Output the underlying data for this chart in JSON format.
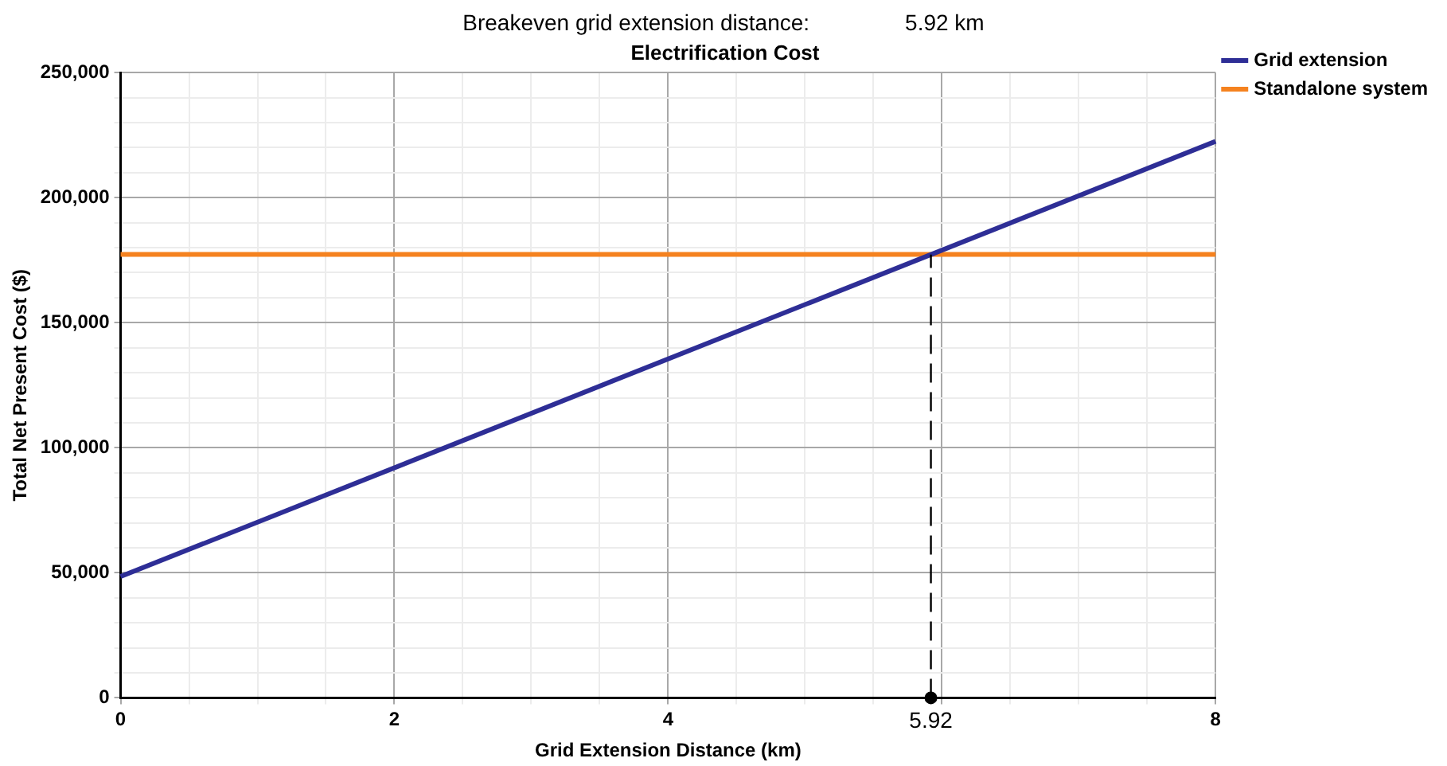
{
  "chart_data": {
    "type": "line",
    "title": "Electrification Cost",
    "xlabel": "Grid Extension Distance (km)",
    "ylabel": "Total Net Present Cost ($)",
    "annotations": [
      "Breakeven grid extension distance:",
      "5.92 km"
    ],
    "series": [
      {
        "name": "Grid extension",
        "color": "#2e2e96",
        "x": [
          0,
          8
        ],
        "values": [
          48500,
          222500
        ]
      },
      {
        "name": "Standalone system",
        "color": "#f5821f",
        "x": [
          0,
          8
        ],
        "values": [
          177300,
          177300
        ]
      },
      {
        "type": "scatter",
        "color": "#000000",
        "x": [
          5.92
        ],
        "values": [
          0
        ],
        "marker": "circle"
      }
    ],
    "xlim": [
      0,
      8
    ],
    "ylim": [
      0,
      250000
    ],
    "xticks": [
      0,
      {
        "value": 0.5,
        "label": null
      },
      {
        "value": 1,
        "label": null
      },
      {
        "value": 1.5,
        "label": null
      },
      2,
      {
        "value": 2.5,
        "label": null
      },
      {
        "value": 3,
        "label": null
      },
      {
        "value": 3.5,
        "label": null
      },
      4,
      {
        "value": 4.5,
        "label": null
      },
      {
        "value": 5,
        "label": null
      },
      {
        "value": 5.5,
        "label": null
      },
      {
        "value": 6,
        "label": null
      },
      {
        "value": 6.5,
        "label": null
      },
      {
        "value": 7,
        "label": null
      },
      {
        "value": 7.5,
        "label": null
      },
      8
    ],
    "yticks": [
      {
        "value": 0,
        "label": "0"
      },
      {
        "value": 10000,
        "label": null
      },
      {
        "value": 20000,
        "label": null
      },
      {
        "value": 30000,
        "label": null
      },
      {
        "value": 40000,
        "label": null
      },
      {
        "value": 50000,
        "label": "50,000"
      },
      {
        "value": 60000,
        "label": null
      },
      {
        "value": 70000,
        "label": null
      },
      {
        "value": 80000,
        "label": null
      },
      {
        "value": 90000,
        "label": null
      },
      {
        "value": 100000,
        "label": "100,000"
      },
      {
        "value": 110000,
        "label": null
      },
      {
        "value": 120000,
        "label": null
      },
      {
        "value": 130000,
        "label": null
      },
      {
        "value": 140000,
        "label": null
      },
      {
        "value": 150000,
        "label": "150,000"
      },
      {
        "value": 160000,
        "label": null
      },
      {
        "value": 170000,
        "label": null
      },
      {
        "value": 180000,
        "label": null
      },
      {
        "value": 190000,
        "label": null
      },
      {
        "value": 200000,
        "label": "200,000"
      },
      {
        "value": 210000,
        "label": null
      },
      {
        "value": 220000,
        "label": null
      },
      {
        "value": 230000,
        "label": null
      },
      {
        "value": 240000,
        "label": null
      },
      {
        "value": 250000,
        "label": "250,000"
      }
    ],
    "ref_lines": [
      {
        "axis": "x",
        "value": 5.92,
        "label": "5.92",
        "color": "#000000",
        "line_style": "dashed"
      }
    ],
    "grid": true,
    "legend": "top right",
    "marker": "none",
    "line_style": "solid"
  }
}
